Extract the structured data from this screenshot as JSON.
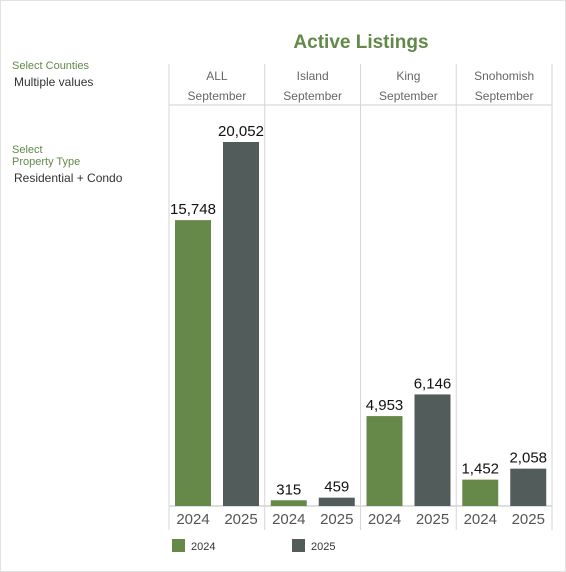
{
  "filters": {
    "counties": {
      "label": "Select Counties",
      "value": "Multiple values"
    },
    "property_type": {
      "label_line1": "Select",
      "label_line2": "Property Type",
      "value": "Residential + Condo"
    }
  },
  "colors": {
    "y2024": "#66894a",
    "y2025": "#525c5a",
    "title": "#62894a"
  },
  "chart_data": {
    "type": "bar",
    "title": "Active Listings",
    "panels": [
      {
        "name": "ALL",
        "month": "September",
        "values": [
          15748,
          20052
        ],
        "labels": [
          "15,748",
          "20,052"
        ]
      },
      {
        "name": "Island",
        "month": "September",
        "values": [
          315,
          459
        ],
        "labels": [
          "315",
          "459"
        ]
      },
      {
        "name": "King",
        "month": "September",
        "values": [
          4953,
          6146
        ],
        "labels": [
          "4,953",
          "6,146"
        ]
      },
      {
        "name": "Snohomish",
        "month": "September",
        "values": [
          1452,
          2058
        ],
        "labels": [
          "1,452",
          "2,058"
        ]
      }
    ],
    "categories": [
      "2024",
      "2025"
    ],
    "series": [
      {
        "name": "2024"
      },
      {
        "name": "2025"
      }
    ],
    "ylim": [
      0,
      20052
    ],
    "grid": false,
    "legend": "bottom-left"
  }
}
